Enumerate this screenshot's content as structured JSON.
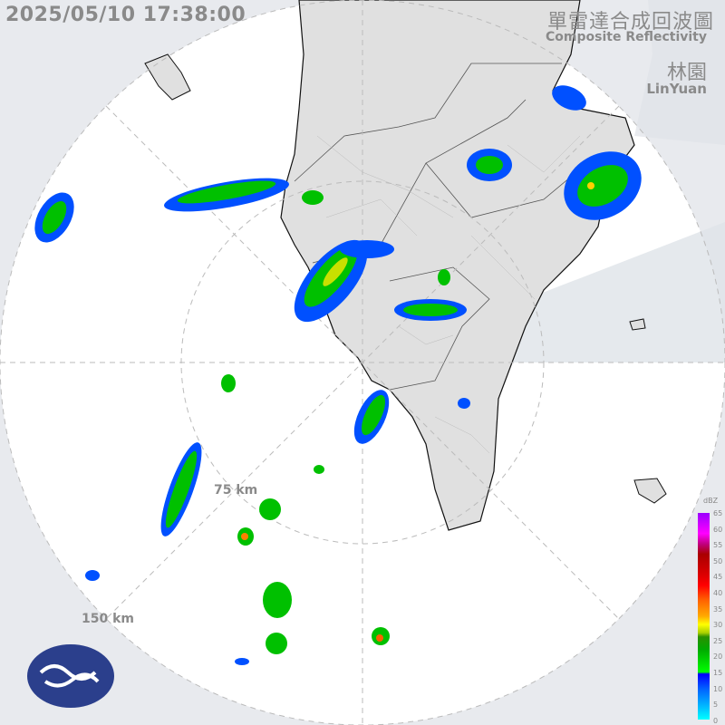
{
  "header": {
    "timestamp": "2025/05/10 17:38:00",
    "title_zh": "單雷達合成回波圖",
    "title_en": "Composite Reflectivity",
    "station_zh": "林園",
    "station_en": "LinYuan"
  },
  "range_rings": {
    "inner_label": "75 km",
    "outer_label": "150 km"
  },
  "legend": {
    "unit": "dBZ",
    "ticks": [
      "65",
      "60",
      "55",
      "50",
      "45",
      "40",
      "35",
      "30",
      "25",
      "20",
      "15",
      "10",
      "5",
      "0"
    ],
    "colors": {
      "max": "#9b00ff",
      "high": "#ff0000",
      "mid": "#ffff00",
      "low": "#00aa00",
      "min": "#00ffff"
    }
  },
  "colors": {
    "outside_range": "#e8eaee",
    "sea": "#ffffff",
    "land": "#e0e0e0",
    "blocked_sector": "#d8dce2",
    "echo_light": "#0050ff",
    "echo_mod": "#00c000",
    "echo_strong": "#ffd000"
  },
  "logo": {
    "icon": "cwa-logo"
  }
}
